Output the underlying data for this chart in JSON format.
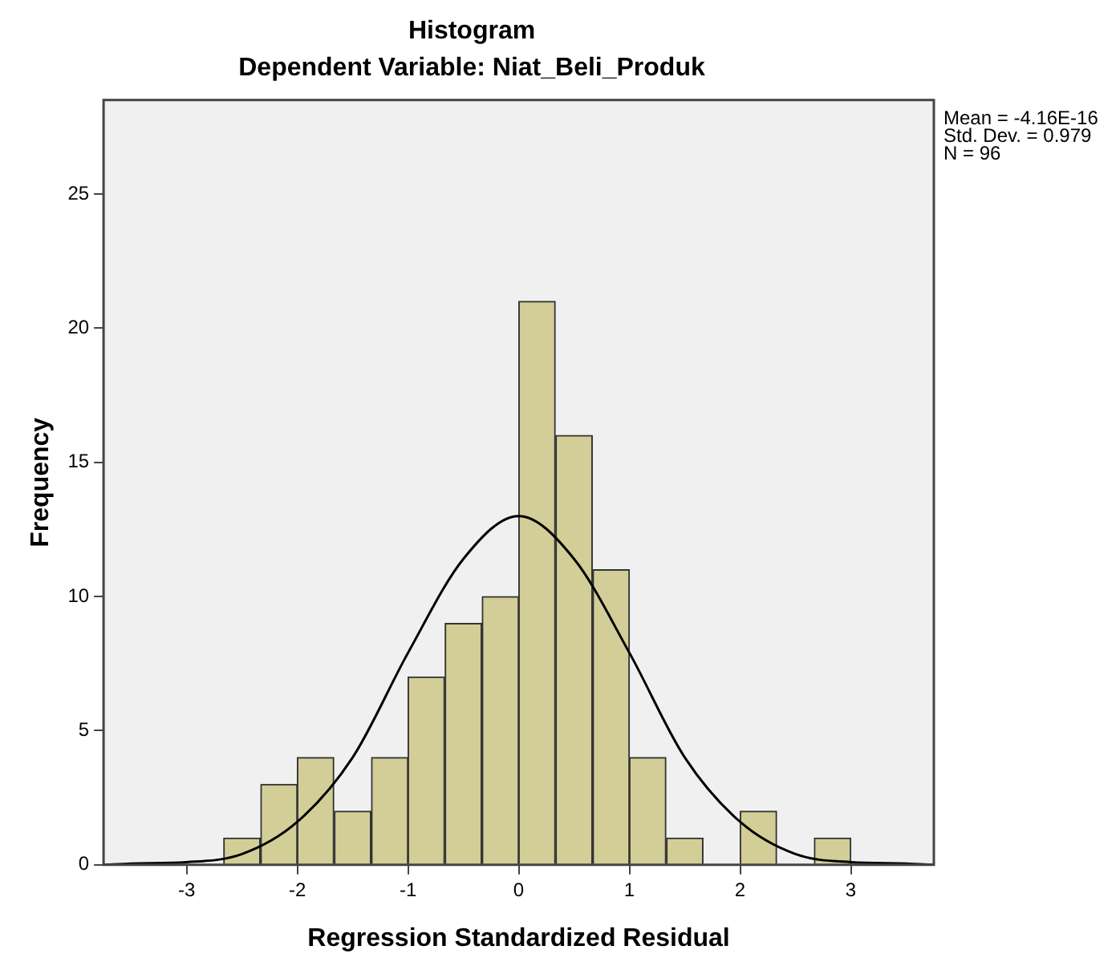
{
  "chart_data": {
    "type": "histogram",
    "title": "Histogram",
    "subtitle": "Dependent Variable: Niat_Beli_Produk",
    "xlabel": "Regression Standardized Residual",
    "ylabel": "Frequency",
    "bins": [
      -2.67,
      -2.33,
      -2,
      -1.67,
      -1.33,
      -1,
      -0.67,
      -0.33,
      0,
      0.33,
      0.67,
      1,
      1.33,
      1.67,
      2,
      2.33,
      2.67,
      3
    ],
    "values": [
      1,
      3,
      4,
      2,
      4,
      7,
      9,
      10,
      21,
      16,
      11,
      4,
      1,
      0,
      2,
      0,
      1
    ],
    "color": "#d3ce97",
    "series": [
      {
        "type": "line",
        "color": "#000000",
        "x": [
          -3.75,
          -3.5,
          -3,
          -2.5,
          -2,
          -1.5,
          -1,
          -0.5,
          0,
          0.5,
          1,
          1.5,
          2,
          2.5,
          3,
          3.5,
          3.75
        ],
        "values": [
          0,
          0.05,
          0.1,
          0.4,
          1.6,
          4,
          7.9,
          11.4,
          13,
          11.4,
          7.9,
          4,
          1.6,
          0.4,
          0.1,
          0.05,
          0
        ]
      }
    ],
    "xlim": [
      -3.75,
      3.75
    ],
    "xticks": [
      -3,
      -2,
      -1,
      0,
      1,
      2,
      3
    ],
    "ylim": [
      0,
      28.5
    ],
    "yticks": [
      0,
      5,
      10,
      15,
      20,
      25
    ],
    "grid": false,
    "legend": false,
    "marker": "none",
    "annotations": [
      "Mean = -4.16E-16",
      "Std. Dev. = 0.979",
      "N = 96"
    ]
  }
}
